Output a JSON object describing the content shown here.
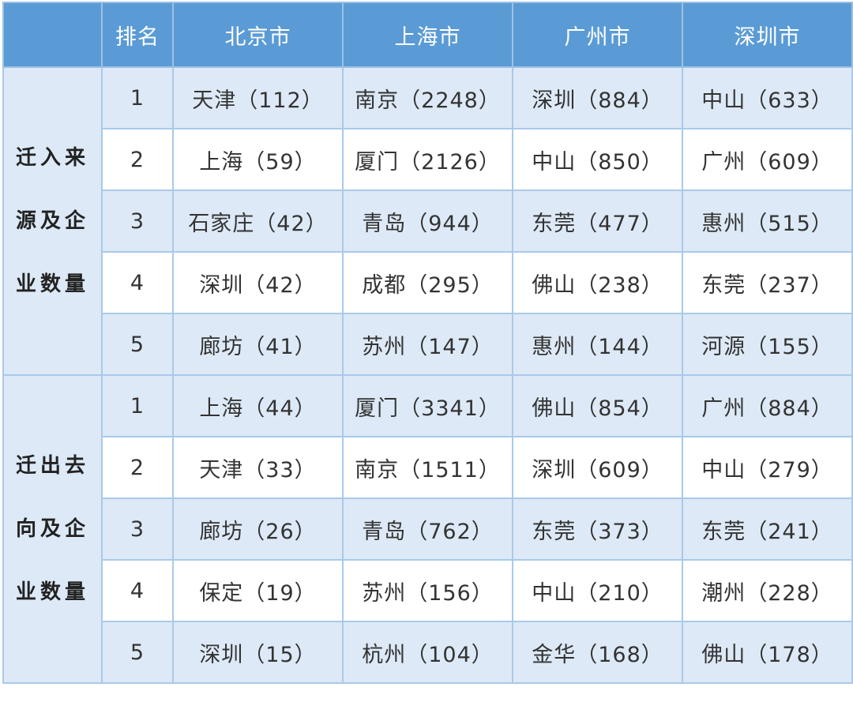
{
  "header": [
    "",
    "排名",
    "北京市",
    "上海市",
    "广州市",
    "深圳市"
  ],
  "colors": {
    "header_bg": "#5b9bd5",
    "alt_row_bg": "#dde9f6",
    "border": "#a9c9ea"
  },
  "groups": [
    {
      "label_lines": [
        "迁入来",
        "源及企",
        "业数量"
      ],
      "rows": [
        [
          "1",
          "天津（112）",
          "南京（2248）",
          "深圳（884）",
          "中山（633）"
        ],
        [
          "2",
          "上海（59）",
          "厦门（2126）",
          "中山（850）",
          "广州（609）"
        ],
        [
          "3",
          "石家庄（42）",
          "青岛（944）",
          "东莞（477）",
          "惠州（515）"
        ],
        [
          "4",
          "深圳（42）",
          "成都（295）",
          "佛山（238）",
          "东莞（237）"
        ],
        [
          "5",
          "廊坊（41）",
          "苏州（147）",
          "惠州（144）",
          "河源（155）"
        ]
      ]
    },
    {
      "label_lines": [
        "迁出去",
        "向及企",
        "业数量"
      ],
      "rows": [
        [
          "1",
          "上海（44）",
          "厦门（3341）",
          "佛山（854）",
          "广州（884）"
        ],
        [
          "2",
          "天津（33）",
          "南京（1511）",
          "深圳（609）",
          "中山（279）"
        ],
        [
          "3",
          "廊坊（26）",
          "青岛（762）",
          "东莞（373）",
          "东莞（241）"
        ],
        [
          "4",
          "保定（19）",
          "苏州（156）",
          "中山（210）",
          "潮州（228）"
        ],
        [
          "5",
          "深圳（15）",
          "杭州（104）",
          "金华（168）",
          "佛山（178）"
        ]
      ]
    }
  ]
}
